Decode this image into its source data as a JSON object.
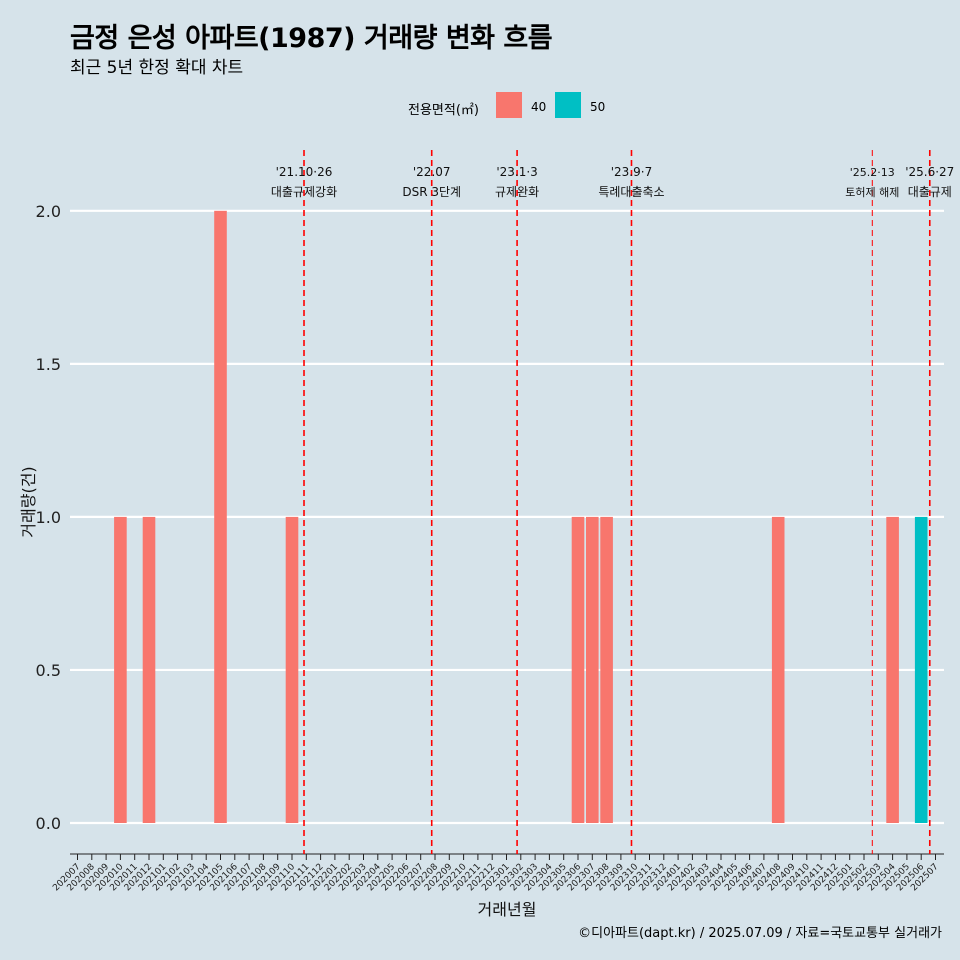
{
  "chart_data": {
    "type": "bar",
    "title": "금정 은성 아파트(1987) 거래량 변화 흐름",
    "subtitle": "최근 5년 한정 확대 차트",
    "xlabel": "거래년월",
    "ylabel": "거래량(건)",
    "ylim": [
      0,
      2.08
    ],
    "yticks": [
      "0.0",
      "0.5",
      "1.0",
      "1.5",
      "2.0"
    ],
    "grid": true,
    "legend": {
      "title": "전용면적(㎡)",
      "position": "top",
      "entries": [
        "40",
        "50"
      ]
    },
    "categories": [
      "202007",
      "202008",
      "202009",
      "202010",
      "202011",
      "202012",
      "202101",
      "202102",
      "202103",
      "202104",
      "202105",
      "202106",
      "202107",
      "202108",
      "202109",
      "202110",
      "202111",
      "202112",
      "202201",
      "202202",
      "202203",
      "202204",
      "202205",
      "202206",
      "202207",
      "202208",
      "202209",
      "202210",
      "202211",
      "202212",
      "202301",
      "202302",
      "202303",
      "202304",
      "202305",
      "202306",
      "202307",
      "202308",
      "202309",
      "202310",
      "202311",
      "202312",
      "202401",
      "202402",
      "202403",
      "202404",
      "202405",
      "202406",
      "202407",
      "202408",
      "202409",
      "202410",
      "202411",
      "202412",
      "202501",
      "202502",
      "202503",
      "202504",
      "202505",
      "202506",
      "202507"
    ],
    "series": [
      {
        "name": "40",
        "color": "#f8766d",
        "values": [
          0,
          0,
          0,
          1,
          0,
          1,
          0,
          0,
          0,
          0,
          2,
          0,
          0,
          0,
          0,
          1,
          0,
          0,
          0,
          0,
          0,
          0,
          0,
          0,
          0,
          0,
          0,
          0,
          0,
          0,
          0,
          0,
          0,
          0,
          0,
          1,
          1,
          1,
          0,
          0,
          0,
          0,
          0,
          0,
          0,
          0,
          0,
          0,
          0,
          1,
          0,
          0,
          0,
          0,
          0,
          0,
          0,
          1,
          0,
          0,
          0
        ]
      },
      {
        "name": "50",
        "color": "#00bfc4",
        "values": [
          0,
          0,
          0,
          0,
          0,
          0,
          0,
          0,
          0,
          0,
          0,
          0,
          0,
          0,
          0,
          0,
          0,
          0,
          0,
          0,
          0,
          0,
          0,
          0,
          0,
          0,
          0,
          0,
          0,
          0,
          0,
          0,
          0,
          0,
          0,
          0,
          0,
          0,
          0,
          0,
          0,
          0,
          0,
          0,
          0,
          0,
          0,
          0,
          0,
          0,
          0,
          0,
          0,
          0,
          0,
          0,
          0,
          0,
          0,
          1,
          0
        ]
      }
    ],
    "annotations": [
      {
        "date": "2021-10-26",
        "x": 15.84,
        "label1": "'21.10·26",
        "label2": "대출규제강화",
        "style": "dashed"
      },
      {
        "date": "2022-07",
        "x": 24.77,
        "label1": "'22.07",
        "label2": "DSR 3단계",
        "style": "dashed"
      },
      {
        "date": "2023-01-03",
        "x": 30.74,
        "label1": "'23.1·3",
        "label2": "규제완화",
        "style": "dashed"
      },
      {
        "date": "2023-09-07",
        "x": 38.74,
        "label1": "'23.9·7",
        "label2": "특례대출축소",
        "style": "dashed"
      },
      {
        "date": "2025-02-13",
        "x": 55.58,
        "label1": "'25.2·13",
        "label2": "토허제 해제",
        "style": "thin-dashed"
      },
      {
        "date": "2025-06-27",
        "x": 59.6,
        "label1": "'25.6·27",
        "label2": "대출규제",
        "style": "dashed"
      }
    ]
  },
  "caption": "©디아파트(dapt.kr) / 2025.07.09 / 자료=국토교통부 실거래가"
}
